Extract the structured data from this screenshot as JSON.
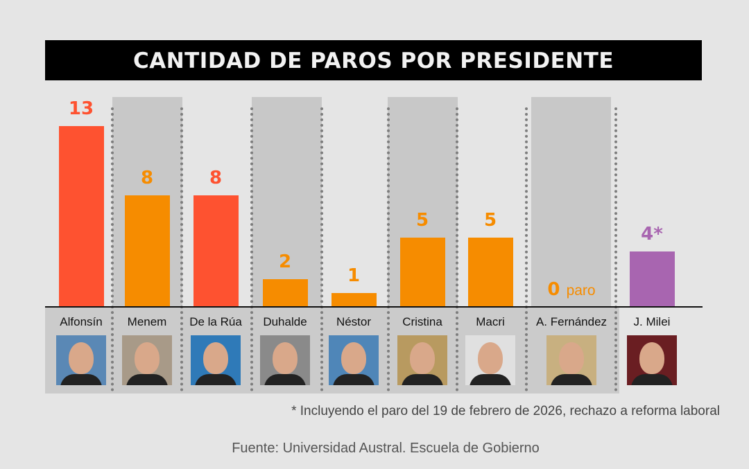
{
  "chart_data": {
    "type": "bar",
    "title": "CANTIDAD DE PAROS POR PRESIDENTE",
    "categories": [
      "Alfonsín",
      "Menem",
      "De la Rúa",
      "Duhalde",
      "Néstor",
      "Cristina",
      "Macri",
      "A. Fernández",
      "J. Milei"
    ],
    "values": [
      13,
      8,
      8,
      2,
      1,
      5,
      5,
      0,
      4
    ],
    "value_labels": [
      "13",
      "8",
      "8",
      "2",
      "1",
      "5",
      "5",
      "0",
      "4*"
    ],
    "zero_suffix": "paro",
    "colors": [
      "#fe5230",
      "#f68c00",
      "#fe5230",
      "#f68c00",
      "#f68c00",
      "#f68c00",
      "#f68c00",
      "#f68c00",
      "#a865b0"
    ],
    "ylim": [
      0,
      13
    ],
    "grid": false,
    "xlabel": "",
    "ylabel": ""
  },
  "footnote": "* Incluyendo el paro del 19 de febrero de 2026, rechazo a reforma laboral",
  "source": "Fuente: Universidad Austral. Escuela de Gobierno",
  "photo_bg": [
    "#5a88b5",
    "#a89a88",
    "#2f7ab8",
    "#8a8a8a",
    "#4f86b8",
    "#b89a60",
    "#e0e0e0",
    "#c8b080",
    "#6a1e22"
  ]
}
